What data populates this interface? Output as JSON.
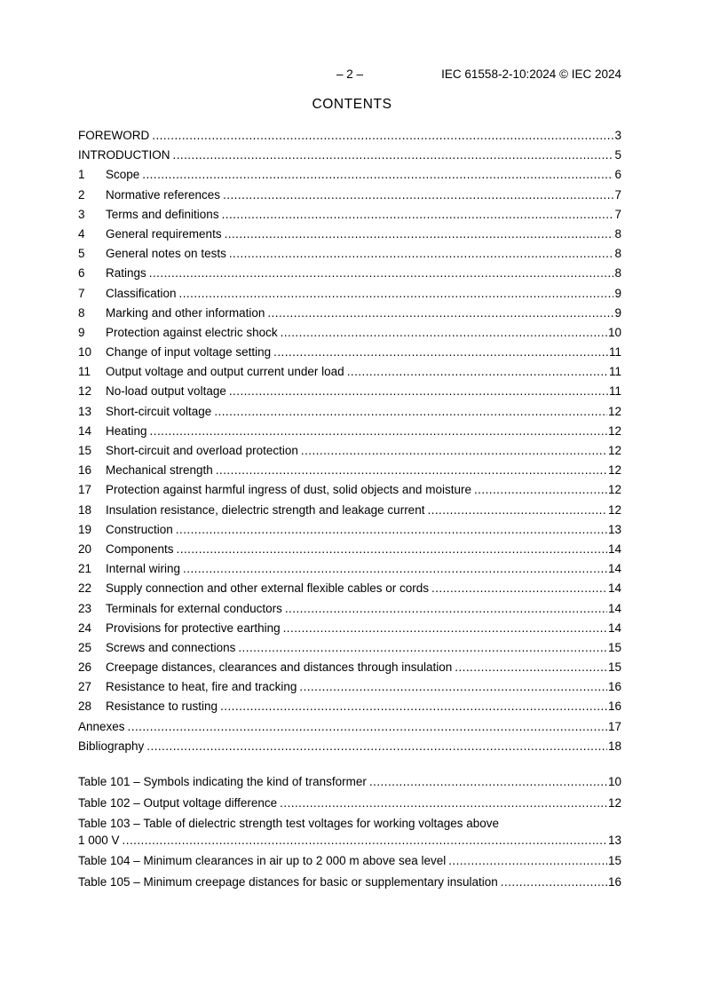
{
  "header": {
    "page_label": "– 2 –",
    "doc_ref": "IEC 61558-2-10:2024 © IEC 2024"
  },
  "contents_title": "CONTENTS",
  "toc_entries": [
    {
      "num": "",
      "title": "FOREWORD",
      "page": "3"
    },
    {
      "num": "",
      "title": "INTRODUCTION",
      "page": "5"
    },
    {
      "num": "1",
      "title": "Scope",
      "page": "6"
    },
    {
      "num": "2",
      "title": "Normative references",
      "page": "7"
    },
    {
      "num": "3",
      "title": "Terms and definitions",
      "page": "7"
    },
    {
      "num": "4",
      "title": "General requirements",
      "page": "8"
    },
    {
      "num": "5",
      "title": "General notes on tests",
      "page": "8"
    },
    {
      "num": "6",
      "title": "Ratings",
      "page": "8"
    },
    {
      "num": "7",
      "title": "Classification",
      "page": "9"
    },
    {
      "num": "8",
      "title": "Marking and other information",
      "page": "9"
    },
    {
      "num": "9",
      "title": "Protection against electric shock",
      "page": "10"
    },
    {
      "num": "10",
      "title": "Change of input voltage setting",
      "page": "11"
    },
    {
      "num": "11",
      "title": "Output voltage and output current under load",
      "page": "11"
    },
    {
      "num": "12",
      "title": "No-load output voltage",
      "page": "11"
    },
    {
      "num": "13",
      "title": "Short-circuit voltage",
      "page": "12"
    },
    {
      "num": "14",
      "title": "Heating",
      "page": "12"
    },
    {
      "num": "15",
      "title": "Short-circuit and overload protection",
      "page": "12"
    },
    {
      "num": "16",
      "title": "Mechanical strength",
      "page": "12"
    },
    {
      "num": "17",
      "title": "Protection against harmful ingress of dust, solid objects and moisture",
      "page": "12"
    },
    {
      "num": "18",
      "title": "Insulation resistance, dielectric strength and leakage current",
      "page": "12"
    },
    {
      "num": "19",
      "title": "Construction",
      "page": "13"
    },
    {
      "num": "20",
      "title": "Components",
      "page": "14"
    },
    {
      "num": "21",
      "title": "Internal wiring",
      "page": "14"
    },
    {
      "num": "22",
      "title": "Supply connection and other external flexible cables or cords",
      "page": "14"
    },
    {
      "num": "23",
      "title": "Terminals for external conductors",
      "page": "14"
    },
    {
      "num": "24",
      "title": "Provisions for protective earthing",
      "page": "14"
    },
    {
      "num": "25",
      "title": "Screws and connections",
      "page": "15"
    },
    {
      "num": "26",
      "title": "Creepage distances, clearances and distances through insulation",
      "page": "15"
    },
    {
      "num": "27",
      "title": "Resistance to heat, fire and tracking",
      "page": "16"
    },
    {
      "num": "28",
      "title": "Resistance to rusting",
      "page": "16"
    },
    {
      "num": "",
      "title": "Annexes",
      "page": "17"
    },
    {
      "num": "",
      "title": "Bibliography",
      "page": "18"
    }
  ],
  "table_entries": [
    {
      "title": "Table 101 – Symbols indicating the kind of transformer",
      "page": "10"
    },
    {
      "title": "Table 102 – Output voltage difference",
      "page": "12"
    },
    {
      "title": "Table 103 – Table of dielectric strength test voltages for working voltages above",
      "title_line2": "1 000 V",
      "page": "13"
    },
    {
      "title": "Table 104 – Minimum clearances in air up to 2 000 m above sea level",
      "page": "15"
    },
    {
      "title": "Table 105 – Minimum creepage distances for basic or supplementary insulation",
      "page": "16"
    }
  ],
  "colors": {
    "text": "#000000",
    "background": "#ffffff"
  }
}
